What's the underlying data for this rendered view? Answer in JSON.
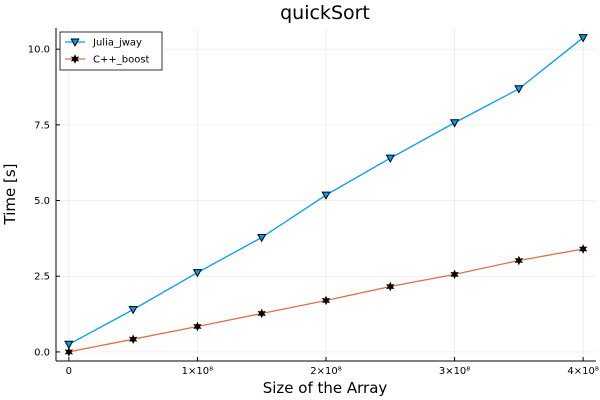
{
  "chart_data": {
    "type": "line",
    "title": "quickSort",
    "xlabel": "Size of the Array",
    "ylabel": "Time [s]",
    "xlim": [
      -10000000,
      410000000
    ],
    "ylim": [
      -0.3,
      10.7
    ],
    "xticks": [
      0,
      100000000,
      200000000,
      300000000,
      400000000
    ],
    "xtick_labels": [
      "0",
      "1×10⁸",
      "2×10⁸",
      "3×10⁸",
      "4×10⁸"
    ],
    "yticks": [
      0,
      2.5,
      5,
      7.5,
      10
    ],
    "ytick_labels": [
      "0.0",
      "2.5",
      "5.0",
      "7.5",
      "10.0"
    ],
    "grid": true,
    "legend_position": "top-left",
    "x": [
      0,
      50000000,
      100000000,
      150000000,
      200000000,
      250000000,
      300000000,
      350000000,
      400000000
    ],
    "series": [
      {
        "name": "Julia_jway",
        "color": "#009AFA",
        "marker": "triangle-down",
        "values": [
          0.25,
          1.4,
          2.62,
          3.78,
          5.18,
          6.4,
          7.57,
          8.69,
          10.38
        ]
      },
      {
        "name": "C++_boost",
        "color": "#E26F46",
        "marker": "star",
        "values": [
          0.0,
          0.42,
          0.84,
          1.27,
          1.7,
          2.16,
          2.56,
          3.02,
          3.4
        ]
      }
    ]
  }
}
